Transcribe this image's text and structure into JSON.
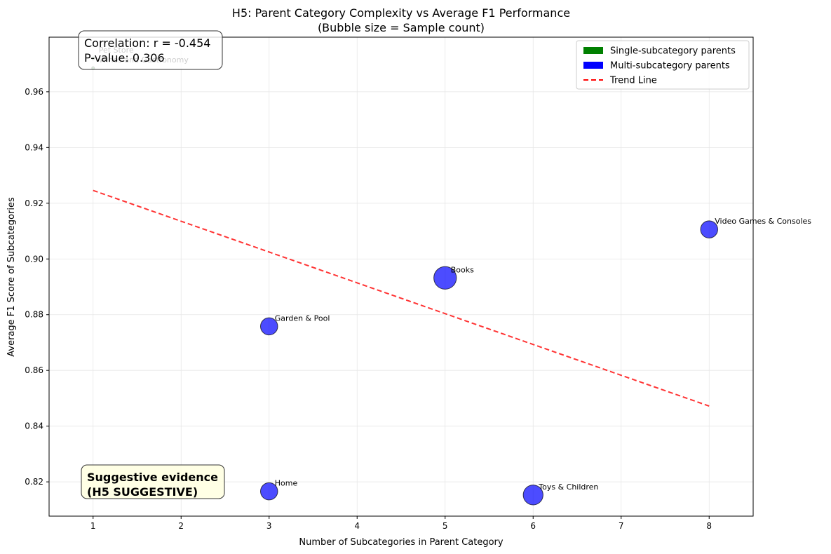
{
  "chart_data": {
    "type": "scatter",
    "title": "H5: Parent Category Complexity vs Average F1 Performance",
    "subtitle": "(Bubble size = Sample count)",
    "x_label": "Number of Subcategories in Parent Category",
    "y_label": "Average F1 Score of Subcategories",
    "xlim": [
      0.5,
      8.5
    ],
    "ylim": [
      0.8077,
      0.9796
    ],
    "xticks": [
      1,
      2,
      3,
      4,
      5,
      6,
      7,
      8
    ],
    "yticks": [
      0.82,
      0.84,
      0.86,
      0.88,
      {
        "value": 0.9,
        "label": "0.90"
      },
      0.92,
      0.94,
      0.96
    ],
    "grid": true,
    "legend_position": "upper right",
    "series": [
      {
        "name": "Single-subcategory parents",
        "color": "#008000",
        "x": [
          1,
          1
        ],
        "values": [
          0.972,
          0.9685
        ],
        "sizes": [
          4,
          4
        ],
        "labels": [
          "Pet Store",
          "Wines and Gastronomy"
        ]
      },
      {
        "name": "Multi-subcategory parents",
        "color": "#0000ff",
        "x": [
          3,
          5,
          8,
          3,
          6
        ],
        "values": [
          0.8758,
          0.8932,
          0.9106,
          0.8166,
          0.8153
        ],
        "sizes": [
          150,
          260,
          150,
          150,
          200
        ],
        "labels": [
          "Garden & Pool",
          "Books",
          "Video Games & Consoles",
          "Home",
          "Toys & Children"
        ]
      }
    ],
    "trend_line": {
      "name": "Trend Line",
      "color": "#ff0000",
      "x": [
        1,
        8
      ],
      "values": [
        0.9246,
        0.8472
      ]
    },
    "annotations": [
      {
        "lines": [
          "Correlation: r = -0.454",
          "P-value: 0.306"
        ]
      },
      {
        "lines": [
          "Suggestive evidence",
          "(H5 SUGGESTIVE)"
        ],
        "color": "#ffa500"
      }
    ]
  }
}
